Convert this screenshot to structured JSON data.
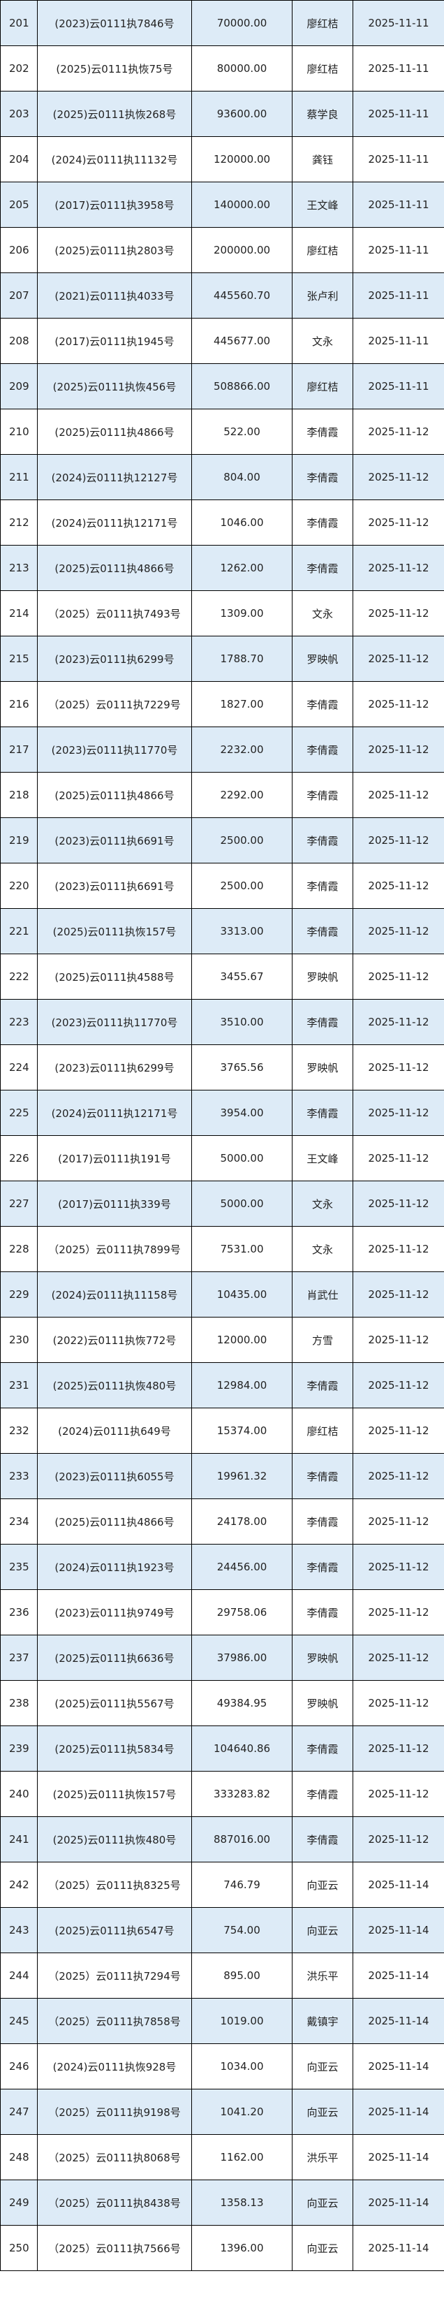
{
  "colors": {
    "alt_row": "#ddebf7",
    "row": "#ffffff",
    "border": "#000000"
  },
  "rows": [
    [
      "201",
      "(2023)云0111执7846号",
      "70000.00",
      "廖红桔",
      "2025-11-11"
    ],
    [
      "202",
      "(2025)云0111执恢75号",
      "80000.00",
      "廖红桔",
      "2025-11-11"
    ],
    [
      "203",
      "(2025)云0111执恢268号",
      "93600.00",
      "蔡学良",
      "2025-11-11"
    ],
    [
      "204",
      "(2024)云0111执11132号",
      "120000.00",
      "龚钰",
      "2025-11-11"
    ],
    [
      "205",
      "(2017)云0111执3958号",
      "140000.00",
      "王文峰",
      "2025-11-11"
    ],
    [
      "206",
      "(2025)云0111执2803号",
      "200000.00",
      "廖红桔",
      "2025-11-11"
    ],
    [
      "207",
      "(2021)云0111执4033号",
      "445560.70",
      "张卢利",
      "2025-11-11"
    ],
    [
      "208",
      "(2017)云0111执1945号",
      "445677.00",
      "文永",
      "2025-11-11"
    ],
    [
      "209",
      "(2025)云0111执恢456号",
      "508866.00",
      "廖红桔",
      "2025-11-11"
    ],
    [
      "210",
      "(2025)云0111执4866号",
      "522.00",
      "李倩霞",
      "2025-11-12"
    ],
    [
      "211",
      "(2024)云0111执12127号",
      "804.00",
      "李倩霞",
      "2025-11-12"
    ],
    [
      "212",
      "(2024)云0111执12171号",
      "1046.00",
      "李倩霞",
      "2025-11-12"
    ],
    [
      "213",
      "(2025)云0111执4866号",
      "1262.00",
      "李倩霞",
      "2025-11-12"
    ],
    [
      "214",
      "（2025）云0111执7493号",
      "1309.00",
      "文永",
      "2025-11-12"
    ],
    [
      "215",
      "(2023)云0111执6299号",
      "1788.70",
      "罗映帆",
      "2025-11-12"
    ],
    [
      "216",
      "（2025）云0111执7229号",
      "1827.00",
      "李倩霞",
      "2025-11-12"
    ],
    [
      "217",
      "(2023)云0111执11770号",
      "2232.00",
      "李倩霞",
      "2025-11-12"
    ],
    [
      "218",
      "(2025)云0111执4866号",
      "2292.00",
      "李倩霞",
      "2025-11-12"
    ],
    [
      "219",
      "(2023)云0111执6691号",
      "2500.00",
      "李倩霞",
      "2025-11-12"
    ],
    [
      "220",
      "(2023)云0111执6691号",
      "2500.00",
      "李倩霞",
      "2025-11-12"
    ],
    [
      "221",
      "(2025)云0111执恢157号",
      "3313.00",
      "李倩霞",
      "2025-11-12"
    ],
    [
      "222",
      "(2025)云0111执4588号",
      "3455.67",
      "罗映帆",
      "2025-11-12"
    ],
    [
      "223",
      "(2023)云0111执11770号",
      "3510.00",
      "李倩霞",
      "2025-11-12"
    ],
    [
      "224",
      "(2023)云0111执6299号",
      "3765.56",
      "罗映帆",
      "2025-11-12"
    ],
    [
      "225",
      "(2024)云0111执12171号",
      "3954.00",
      "李倩霞",
      "2025-11-12"
    ],
    [
      "226",
      "(2017)云0111执191号",
      "5000.00",
      "王文峰",
      "2025-11-12"
    ],
    [
      "227",
      "(2017)云0111执339号",
      "5000.00",
      "文永",
      "2025-11-12"
    ],
    [
      "228",
      "（2025）云0111执7899号",
      "7531.00",
      "文永",
      "2025-11-12"
    ],
    [
      "229",
      "(2024)云0111执11158号",
      "10435.00",
      "肖武仕",
      "2025-11-12"
    ],
    [
      "230",
      "(2022)云0111执恢772号",
      "12000.00",
      "方雪",
      "2025-11-12"
    ],
    [
      "231",
      "(2025)云0111执恢480号",
      "12984.00",
      "李倩霞",
      "2025-11-12"
    ],
    [
      "232",
      "(2024)云0111执649号",
      "15374.00",
      "廖红桔",
      "2025-11-12"
    ],
    [
      "233",
      "(2023)云0111执6055号",
      "19961.32",
      "李倩霞",
      "2025-11-12"
    ],
    [
      "234",
      "(2025)云0111执4866号",
      "24178.00",
      "李倩霞",
      "2025-11-12"
    ],
    [
      "235",
      "(2024)云0111执1923号",
      "24456.00",
      "李倩霞",
      "2025-11-12"
    ],
    [
      "236",
      "(2023)云0111执9749号",
      "29758.06",
      "李倩霞",
      "2025-11-12"
    ],
    [
      "237",
      "(2025)云0111执6636号",
      "37986.00",
      "罗映帆",
      "2025-11-12"
    ],
    [
      "238",
      "(2025)云0111执5567号",
      "49384.95",
      "罗映帆",
      "2025-11-12"
    ],
    [
      "239",
      "(2025)云0111执5834号",
      "104640.86",
      "李倩霞",
      "2025-11-12"
    ],
    [
      "240",
      "(2025)云0111执恢157号",
      "333283.82",
      "李倩霞",
      "2025-11-12"
    ],
    [
      "241",
      "(2025)云0111执恢480号",
      "887016.00",
      "李倩霞",
      "2025-11-12"
    ],
    [
      "242",
      "（2025）云0111执8325号",
      "746.79",
      "向亚云",
      "2025-11-14"
    ],
    [
      "243",
      "(2025)云0111执6547号",
      "754.00",
      "向亚云",
      "2025-11-14"
    ],
    [
      "244",
      "（2025）云0111执7294号",
      "895.00",
      "洪乐平",
      "2025-11-14"
    ],
    [
      "245",
      "（2025）云0111执7858号",
      "1019.00",
      "戴镇宇",
      "2025-11-14"
    ],
    [
      "246",
      "(2024)云0111执恢928号",
      "1034.00",
      "向亚云",
      "2025-11-14"
    ],
    [
      "247",
      "（2025）云0111执9198号",
      "1041.20",
      "向亚云",
      "2025-11-14"
    ],
    [
      "248",
      "（2025）云0111执8068号",
      "1162.00",
      "洪乐平",
      "2025-11-14"
    ],
    [
      "249",
      "（2025）云0111执8438号",
      "1358.13",
      "向亚云",
      "2025-11-14"
    ],
    [
      "250",
      "（2025）云0111执7566号",
      "1396.00",
      "向亚云",
      "2025-11-14"
    ]
  ]
}
